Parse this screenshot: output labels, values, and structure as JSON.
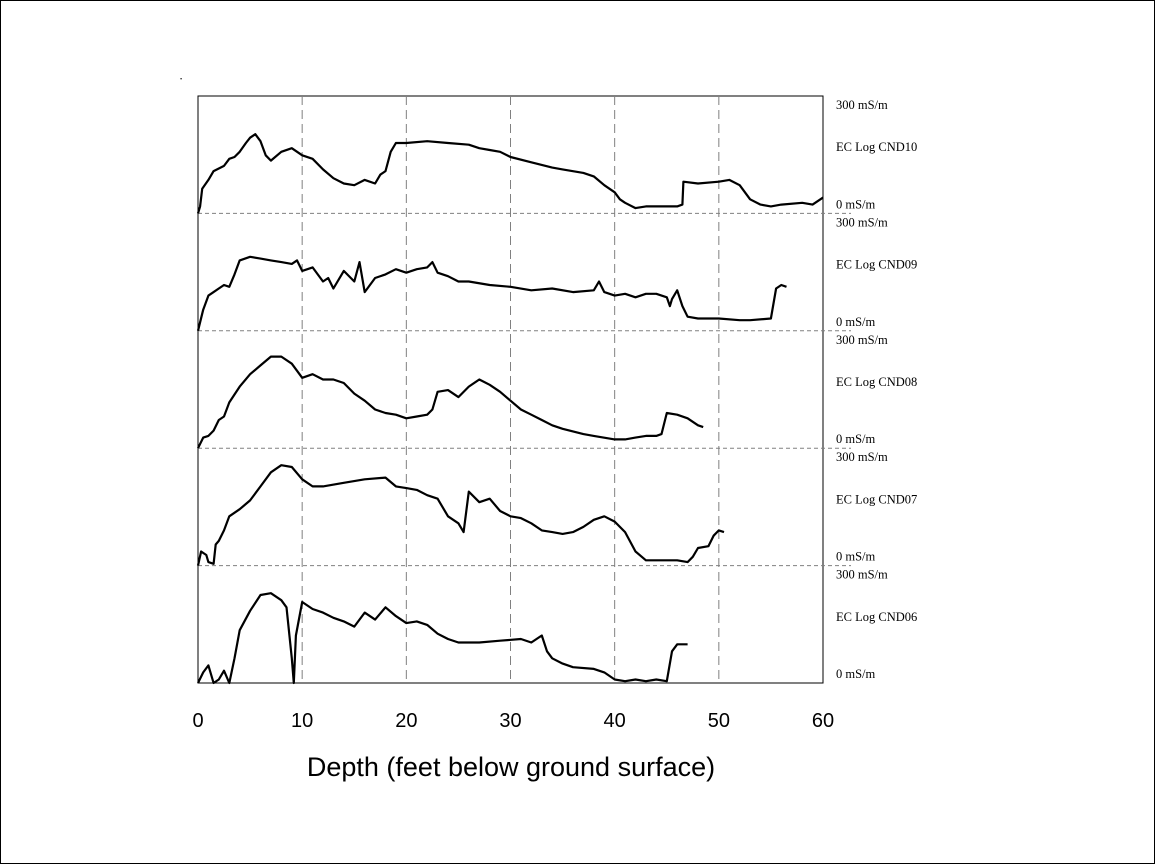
{
  "chart_data": {
    "type": "line",
    "xlabel": "Depth (feet below ground surface)",
    "xlim": [
      0,
      60
    ],
    "x_ticks": [
      "0",
      "10",
      "20",
      "30",
      "40",
      "50",
      "60"
    ],
    "grid": "vertical dashed lines at x ticks",
    "panels": [
      {
        "name": "EC Log CND10",
        "top_label": "300 mS/m",
        "bottom_label": "0 mS/m",
        "ylim": [
          0,
          300
        ],
        "points": [
          [
            0,
            0
          ],
          [
            0.2,
            20
          ],
          [
            0.4,
            70
          ],
          [
            1,
            95
          ],
          [
            1.5,
            120
          ],
          [
            2.5,
            135
          ],
          [
            3,
            155
          ],
          [
            3.5,
            160
          ],
          [
            4,
            175
          ],
          [
            4.6,
            200
          ],
          [
            5,
            215
          ],
          [
            5.5,
            225
          ],
          [
            6,
            205
          ],
          [
            6.5,
            165
          ],
          [
            7,
            150
          ],
          [
            8,
            175
          ],
          [
            9,
            185
          ],
          [
            10,
            165
          ],
          [
            11,
            155
          ],
          [
            12,
            125
          ],
          [
            13,
            100
          ],
          [
            14,
            85
          ],
          [
            15,
            80
          ],
          [
            16,
            95
          ],
          [
            17,
            85
          ],
          [
            17.5,
            110
          ],
          [
            18,
            120
          ],
          [
            18.5,
            175
          ],
          [
            19,
            200
          ],
          [
            20,
            200
          ],
          [
            22,
            205
          ],
          [
            24,
            200
          ],
          [
            26,
            195
          ],
          [
            27,
            185
          ],
          [
            28,
            180
          ],
          [
            29,
            175
          ],
          [
            30,
            160
          ],
          [
            32,
            145
          ],
          [
            34,
            130
          ],
          [
            35,
            125
          ],
          [
            37,
            115
          ],
          [
            38,
            105
          ],
          [
            39,
            80
          ],
          [
            40,
            60
          ],
          [
            40.5,
            40
          ],
          [
            41,
            30
          ],
          [
            42,
            15
          ],
          [
            43,
            20
          ],
          [
            45,
            20
          ],
          [
            46,
            20
          ],
          [
            46.5,
            25
          ],
          [
            46.6,
            90
          ],
          [
            48,
            85
          ],
          [
            50,
            90
          ],
          [
            51,
            95
          ],
          [
            52,
            80
          ],
          [
            53,
            40
          ],
          [
            54,
            25
          ],
          [
            55,
            20
          ],
          [
            56,
            25
          ],
          [
            58,
            30
          ],
          [
            59,
            25
          ],
          [
            60,
            45
          ]
        ]
      },
      {
        "name": "EC Log CND09",
        "top_label": "300 mS/m",
        "bottom_label": "0 mS/m",
        "ylim": [
          0,
          300
        ],
        "points": [
          [
            0,
            0
          ],
          [
            0.5,
            60
          ],
          [
            1,
            100
          ],
          [
            1.5,
            110
          ],
          [
            2,
            120
          ],
          [
            2.5,
            130
          ],
          [
            3,
            125
          ],
          [
            3.5,
            160
          ],
          [
            4,
            200
          ],
          [
            5,
            210
          ],
          [
            6,
            205
          ],
          [
            7,
            200
          ],
          [
            8,
            195
          ],
          [
            9,
            190
          ],
          [
            9.5,
            200
          ],
          [
            10,
            170
          ],
          [
            11,
            180
          ],
          [
            12,
            140
          ],
          [
            12.5,
            150
          ],
          [
            13,
            120
          ],
          [
            14,
            170
          ],
          [
            15,
            140
          ],
          [
            15.5,
            195
          ],
          [
            16,
            110
          ],
          [
            17,
            150
          ],
          [
            18,
            160
          ],
          [
            19,
            175
          ],
          [
            20,
            165
          ],
          [
            21,
            175
          ],
          [
            22,
            180
          ],
          [
            22.5,
            195
          ],
          [
            23,
            165
          ],
          [
            24,
            155
          ],
          [
            25,
            140
          ],
          [
            26,
            140
          ],
          [
            28,
            130
          ],
          [
            30,
            125
          ],
          [
            32,
            115
          ],
          [
            34,
            120
          ],
          [
            36,
            110
          ],
          [
            38,
            115
          ],
          [
            38.5,
            140
          ],
          [
            39,
            110
          ],
          [
            40,
            100
          ],
          [
            41,
            105
          ],
          [
            42,
            95
          ],
          [
            43,
            105
          ],
          [
            44,
            105
          ],
          [
            45,
            95
          ],
          [
            45.3,
            70
          ],
          [
            45.5,
            90
          ],
          [
            46,
            115
          ],
          [
            46.5,
            70
          ],
          [
            47,
            40
          ],
          [
            48,
            35
          ],
          [
            50,
            35
          ],
          [
            52,
            30
          ],
          [
            53,
            30
          ],
          [
            55,
            35
          ],
          [
            55.5,
            120
          ],
          [
            56,
            130
          ],
          [
            56.5,
            125
          ]
        ]
      },
      {
        "name": "EC Log CND08",
        "top_label": "300 mS/m",
        "bottom_label": "0 mS/m",
        "ylim": [
          0,
          300
        ],
        "points": [
          [
            0,
            0
          ],
          [
            0.5,
            30
          ],
          [
            1,
            35
          ],
          [
            1.5,
            50
          ],
          [
            2,
            80
          ],
          [
            2.5,
            90
          ],
          [
            3,
            130
          ],
          [
            4,
            175
          ],
          [
            5,
            210
          ],
          [
            6,
            235
          ],
          [
            7,
            260
          ],
          [
            8,
            260
          ],
          [
            9,
            240
          ],
          [
            10,
            200
          ],
          [
            11,
            210
          ],
          [
            12,
            195
          ],
          [
            13,
            195
          ],
          [
            14,
            185
          ],
          [
            15,
            155
          ],
          [
            16,
            135
          ],
          [
            17,
            110
          ],
          [
            18,
            100
          ],
          [
            19,
            95
          ],
          [
            20,
            85
          ],
          [
            21,
            90
          ],
          [
            22,
            95
          ],
          [
            22.5,
            110
          ],
          [
            23,
            160
          ],
          [
            24,
            165
          ],
          [
            25,
            145
          ],
          [
            26,
            175
          ],
          [
            27,
            195
          ],
          [
            28,
            180
          ],
          [
            29,
            160
          ],
          [
            30,
            135
          ],
          [
            31,
            110
          ],
          [
            32,
            95
          ],
          [
            33,
            80
          ],
          [
            34,
            65
          ],
          [
            35,
            55
          ],
          [
            37,
            40
          ],
          [
            38,
            35
          ],
          [
            40,
            25
          ],
          [
            41,
            25
          ],
          [
            42,
            30
          ],
          [
            43,
            35
          ],
          [
            44,
            35
          ],
          [
            44.5,
            40
          ],
          [
            45,
            100
          ],
          [
            46,
            95
          ],
          [
            47,
            85
          ],
          [
            48,
            65
          ],
          [
            48.5,
            60
          ]
        ]
      },
      {
        "name": "EC Log CND07",
        "top_label": "300 mS/m",
        "bottom_label": "0 mS/m",
        "ylim": [
          0,
          300
        ],
        "points": [
          [
            0,
            0
          ],
          [
            0.3,
            40
          ],
          [
            0.8,
            30
          ],
          [
            1,
            10
          ],
          [
            1.5,
            5
          ],
          [
            1.7,
            60
          ],
          [
            2,
            70
          ],
          [
            2.5,
            100
          ],
          [
            3,
            140
          ],
          [
            4,
            160
          ],
          [
            5,
            185
          ],
          [
            6,
            225
          ],
          [
            7,
            265
          ],
          [
            8,
            285
          ],
          [
            9,
            280
          ],
          [
            10,
            245
          ],
          [
            11,
            225
          ],
          [
            12,
            225
          ],
          [
            14,
            235
          ],
          [
            16,
            245
          ],
          [
            18,
            250
          ],
          [
            19,
            225
          ],
          [
            20,
            220
          ],
          [
            21,
            215
          ],
          [
            22,
            200
          ],
          [
            23,
            190
          ],
          [
            24,
            140
          ],
          [
            25,
            120
          ],
          [
            25.5,
            95
          ],
          [
            26,
            210
          ],
          [
            27,
            180
          ],
          [
            28,
            190
          ],
          [
            29,
            155
          ],
          [
            30,
            140
          ],
          [
            31,
            135
          ],
          [
            32,
            120
          ],
          [
            33,
            100
          ],
          [
            34,
            95
          ],
          [
            35,
            90
          ],
          [
            36,
            95
          ],
          [
            37,
            110
          ],
          [
            38,
            130
          ],
          [
            39,
            140
          ],
          [
            40,
            125
          ],
          [
            41,
            95
          ],
          [
            42,
            40
          ],
          [
            43,
            15
          ],
          [
            44,
            15
          ],
          [
            46,
            15
          ],
          [
            47,
            10
          ],
          [
            47.5,
            25
          ],
          [
            48,
            50
          ],
          [
            49,
            55
          ],
          [
            49.5,
            85
          ],
          [
            50,
            100
          ],
          [
            50.5,
            95
          ]
        ]
      },
      {
        "name": "EC Log CND06",
        "top_label": "300 mS/m",
        "bottom_label": "0 mS/m",
        "ylim": [
          0,
          300
        ],
        "points": [
          [
            0,
            0
          ],
          [
            0.5,
            30
          ],
          [
            1,
            50
          ],
          [
            1.5,
            0
          ],
          [
            2,
            10
          ],
          [
            2.5,
            35
          ],
          [
            3,
            0
          ],
          [
            3.5,
            70
          ],
          [
            4,
            150
          ],
          [
            5,
            205
          ],
          [
            6,
            250
          ],
          [
            7,
            255
          ],
          [
            8,
            235
          ],
          [
            8.5,
            215
          ],
          [
            9,
            70
          ],
          [
            9.2,
            0
          ],
          [
            9.4,
            135
          ],
          [
            10,
            230
          ],
          [
            11,
            210
          ],
          [
            12,
            200
          ],
          [
            13,
            185
          ],
          [
            14,
            175
          ],
          [
            15,
            160
          ],
          [
            16,
            200
          ],
          [
            17,
            180
          ],
          [
            18,
            215
          ],
          [
            19,
            190
          ],
          [
            20,
            170
          ],
          [
            21,
            175
          ],
          [
            22,
            165
          ],
          [
            23,
            140
          ],
          [
            24,
            125
          ],
          [
            25,
            115
          ],
          [
            27,
            115
          ],
          [
            29,
            120
          ],
          [
            31,
            125
          ],
          [
            32,
            115
          ],
          [
            33,
            135
          ],
          [
            33.5,
            90
          ],
          [
            34,
            70
          ],
          [
            35,
            55
          ],
          [
            36,
            45
          ],
          [
            38,
            40
          ],
          [
            39,
            30
          ],
          [
            40,
            10
          ],
          [
            41,
            5
          ],
          [
            42,
            10
          ],
          [
            43,
            5
          ],
          [
            44,
            10
          ],
          [
            45,
            5
          ],
          [
            45.5,
            90
          ],
          [
            46,
            110
          ],
          [
            47,
            110
          ]
        ]
      }
    ]
  }
}
